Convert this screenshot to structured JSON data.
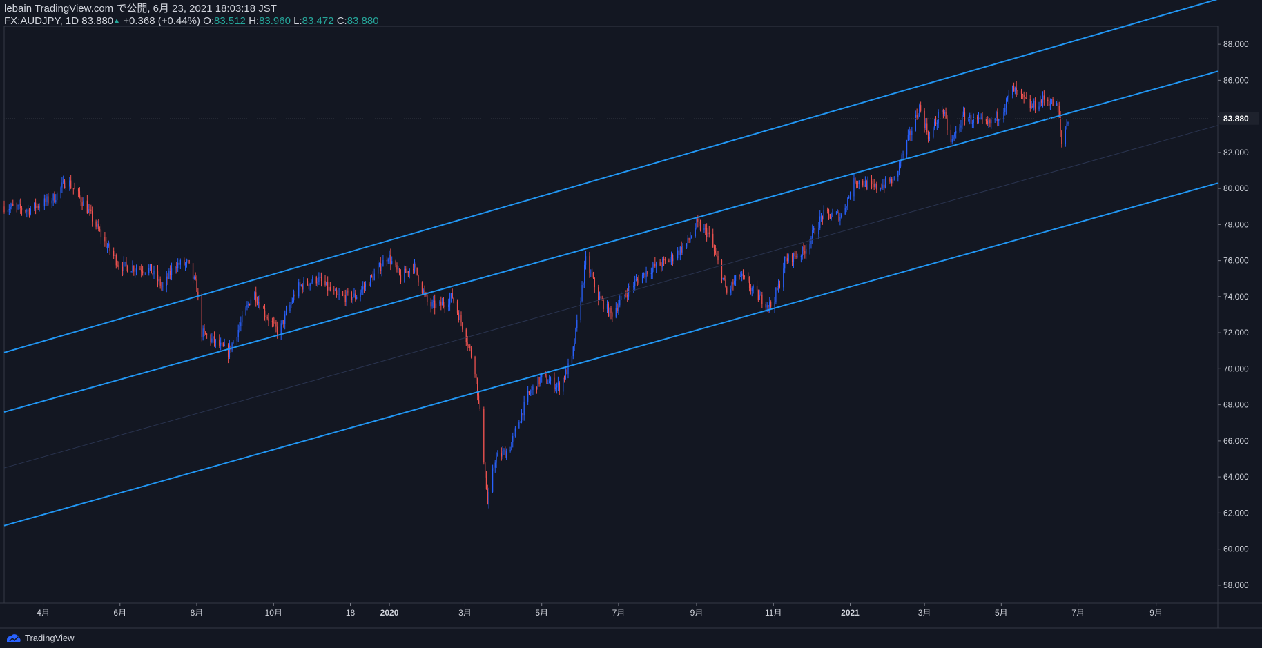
{
  "header": {
    "publisher": "lebain TradingView.com で公開, 6月 23, 2021 18:03:18 JST",
    "symbol": "FX:AUDJPY, 1D",
    "last": "83.880",
    "change": "+0.368 (+0.44%)",
    "open_label": "O:",
    "open": "83.512",
    "high_label": "H:",
    "high": "83.960",
    "low_label": "L:",
    "low": "83.472",
    "close_label": "C:",
    "close": "83.880"
  },
  "brand": {
    "name": "TradingView"
  },
  "colors": {
    "background": "#131722",
    "up": "#2962ff",
    "down": "#ef5350",
    "channel": "#2196f3",
    "axis_text": "#d1d4dc",
    "price_tag": "#1e222d"
  },
  "chart_data": {
    "type": "candlestick",
    "title": "FX:AUDJPY, 1D",
    "ylim": [
      57,
      89
    ],
    "y_ticks": [
      "88.000",
      "86.000",
      "84.000",
      "82.000",
      "80.000",
      "78.000",
      "76.000",
      "74.000",
      "72.000",
      "70.000",
      "68.000",
      "66.000",
      "64.000",
      "62.000",
      "60.000",
      "58.000"
    ],
    "y_tick_values": [
      88,
      86,
      84,
      82,
      80,
      78,
      76,
      74,
      72,
      70,
      68,
      66,
      64,
      62,
      60,
      58
    ],
    "x_ticks": [
      "4月",
      "6月",
      "8月",
      "10月",
      "18",
      "2020",
      "3月",
      "5月",
      "7月",
      "9月",
      "11月",
      "2021",
      "3月",
      "5月",
      "7月",
      "9月"
    ],
    "x_tick_dates": [
      "2019-04-01",
      "2019-06-01",
      "2019-08-01",
      "2019-10-01",
      "2019-12-01",
      "2020-01-01",
      "2020-03-01",
      "2020-05-01",
      "2020-07-01",
      "2020-09-01",
      "2020-11-01",
      "2021-01-01",
      "2021-03-01",
      "2021-05-01",
      "2021-07-01",
      "2021-09-01"
    ],
    "x_range": [
      "2019-03-01",
      "2021-10-20"
    ],
    "last_price": "83.880",
    "price_path": [
      {
        "date": "2019-03-01",
        "price": 79.0
      },
      {
        "date": "2019-03-20",
        "price": 78.8
      },
      {
        "date": "2019-04-10",
        "price": 79.5
      },
      {
        "date": "2019-04-20",
        "price": 80.5
      },
      {
        "date": "2019-05-05",
        "price": 79.0
      },
      {
        "date": "2019-05-20",
        "price": 77.0
      },
      {
        "date": "2019-06-01",
        "price": 75.7
      },
      {
        "date": "2019-06-25",
        "price": 75.5
      },
      {
        "date": "2019-07-05",
        "price": 74.5
      },
      {
        "date": "2019-07-15",
        "price": 75.8
      },
      {
        "date": "2019-07-25",
        "price": 75.8
      },
      {
        "date": "2019-08-01",
        "price": 74.5
      },
      {
        "date": "2019-08-05",
        "price": 72.0
      },
      {
        "date": "2019-08-15",
        "price": 71.5
      },
      {
        "date": "2019-08-26",
        "price": 70.9
      },
      {
        "date": "2019-09-05",
        "price": 72.5
      },
      {
        "date": "2019-09-15",
        "price": 74.3
      },
      {
        "date": "2019-09-25",
        "price": 73.0
      },
      {
        "date": "2019-10-05",
        "price": 72.0
      },
      {
        "date": "2019-10-20",
        "price": 74.5
      },
      {
        "date": "2019-11-05",
        "price": 75.0
      },
      {
        "date": "2019-11-20",
        "price": 74.0
      },
      {
        "date": "2019-12-05",
        "price": 74.0
      },
      {
        "date": "2019-12-20",
        "price": 75.2
      },
      {
        "date": "2019-12-31",
        "price": 76.3
      },
      {
        "date": "2020-01-10",
        "price": 75.0
      },
      {
        "date": "2020-01-20",
        "price": 75.8
      },
      {
        "date": "2020-02-01",
        "price": 73.5
      },
      {
        "date": "2020-02-10",
        "price": 73.5
      },
      {
        "date": "2020-02-20",
        "price": 74.0
      },
      {
        "date": "2020-03-01",
        "price": 72.0
      },
      {
        "date": "2020-03-09",
        "price": 70.0
      },
      {
        "date": "2020-03-13",
        "price": 67.5
      },
      {
        "date": "2020-03-19",
        "price": 62.5
      },
      {
        "date": "2020-03-25",
        "price": 65.0
      },
      {
        "date": "2020-04-05",
        "price": 65.5
      },
      {
        "date": "2020-04-20",
        "price": 68.5
      },
      {
        "date": "2020-05-01",
        "price": 69.5
      },
      {
        "date": "2020-05-15",
        "price": 69.0
      },
      {
        "date": "2020-05-25",
        "price": 70.5
      },
      {
        "date": "2020-06-05",
        "price": 76.0
      },
      {
        "date": "2020-06-15",
        "price": 74.0
      },
      {
        "date": "2020-06-25",
        "price": 73.0
      },
      {
        "date": "2020-07-10",
        "price": 74.5
      },
      {
        "date": "2020-07-25",
        "price": 75.5
      },
      {
        "date": "2020-08-10",
        "price": 76.0
      },
      {
        "date": "2020-08-25",
        "price": 77.0
      },
      {
        "date": "2020-09-01",
        "price": 78.0
      },
      {
        "date": "2020-09-10",
        "price": 77.5
      },
      {
        "date": "2020-09-20",
        "price": 75.5
      },
      {
        "date": "2020-09-25",
        "price": 74.2
      },
      {
        "date": "2020-10-05",
        "price": 75.2
      },
      {
        "date": "2020-10-20",
        "price": 74.0
      },
      {
        "date": "2020-10-30",
        "price": 73.5
      },
      {
        "date": "2020-11-05",
        "price": 74.5
      },
      {
        "date": "2020-11-10",
        "price": 76.0
      },
      {
        "date": "2020-11-25",
        "price": 76.5
      },
      {
        "date": "2020-12-10",
        "price": 78.5
      },
      {
        "date": "2020-12-25",
        "price": 78.5
      },
      {
        "date": "2021-01-05",
        "price": 80.5
      },
      {
        "date": "2021-01-20",
        "price": 80.0
      },
      {
        "date": "2021-02-05",
        "price": 80.5
      },
      {
        "date": "2021-02-15",
        "price": 82.5
      },
      {
        "date": "2021-02-25",
        "price": 84.5
      },
      {
        "date": "2021-03-05",
        "price": 82.8
      },
      {
        "date": "2021-03-15",
        "price": 84.5
      },
      {
        "date": "2021-03-22",
        "price": 82.5
      },
      {
        "date": "2021-04-01",
        "price": 84.0
      },
      {
        "date": "2021-04-20",
        "price": 83.5
      },
      {
        "date": "2021-05-01",
        "price": 84.2
      },
      {
        "date": "2021-05-10",
        "price": 85.5
      },
      {
        "date": "2021-05-25",
        "price": 84.5
      },
      {
        "date": "2021-06-05",
        "price": 85.0
      },
      {
        "date": "2021-06-15",
        "price": 84.5
      },
      {
        "date": "2021-06-18",
        "price": 82.5
      },
      {
        "date": "2021-06-23",
        "price": 83.88
      }
    ],
    "channel": {
      "start_date": "2019-03-01",
      "end_date": "2021-10-20",
      "lines": [
        {
          "start": 70.9,
          "end": 90.5
        },
        {
          "start": 67.6,
          "end": 86.5
        },
        {
          "start": 64.5,
          "end": 83.5
        },
        {
          "start": 61.3,
          "end": 80.3
        }
      ]
    }
  }
}
